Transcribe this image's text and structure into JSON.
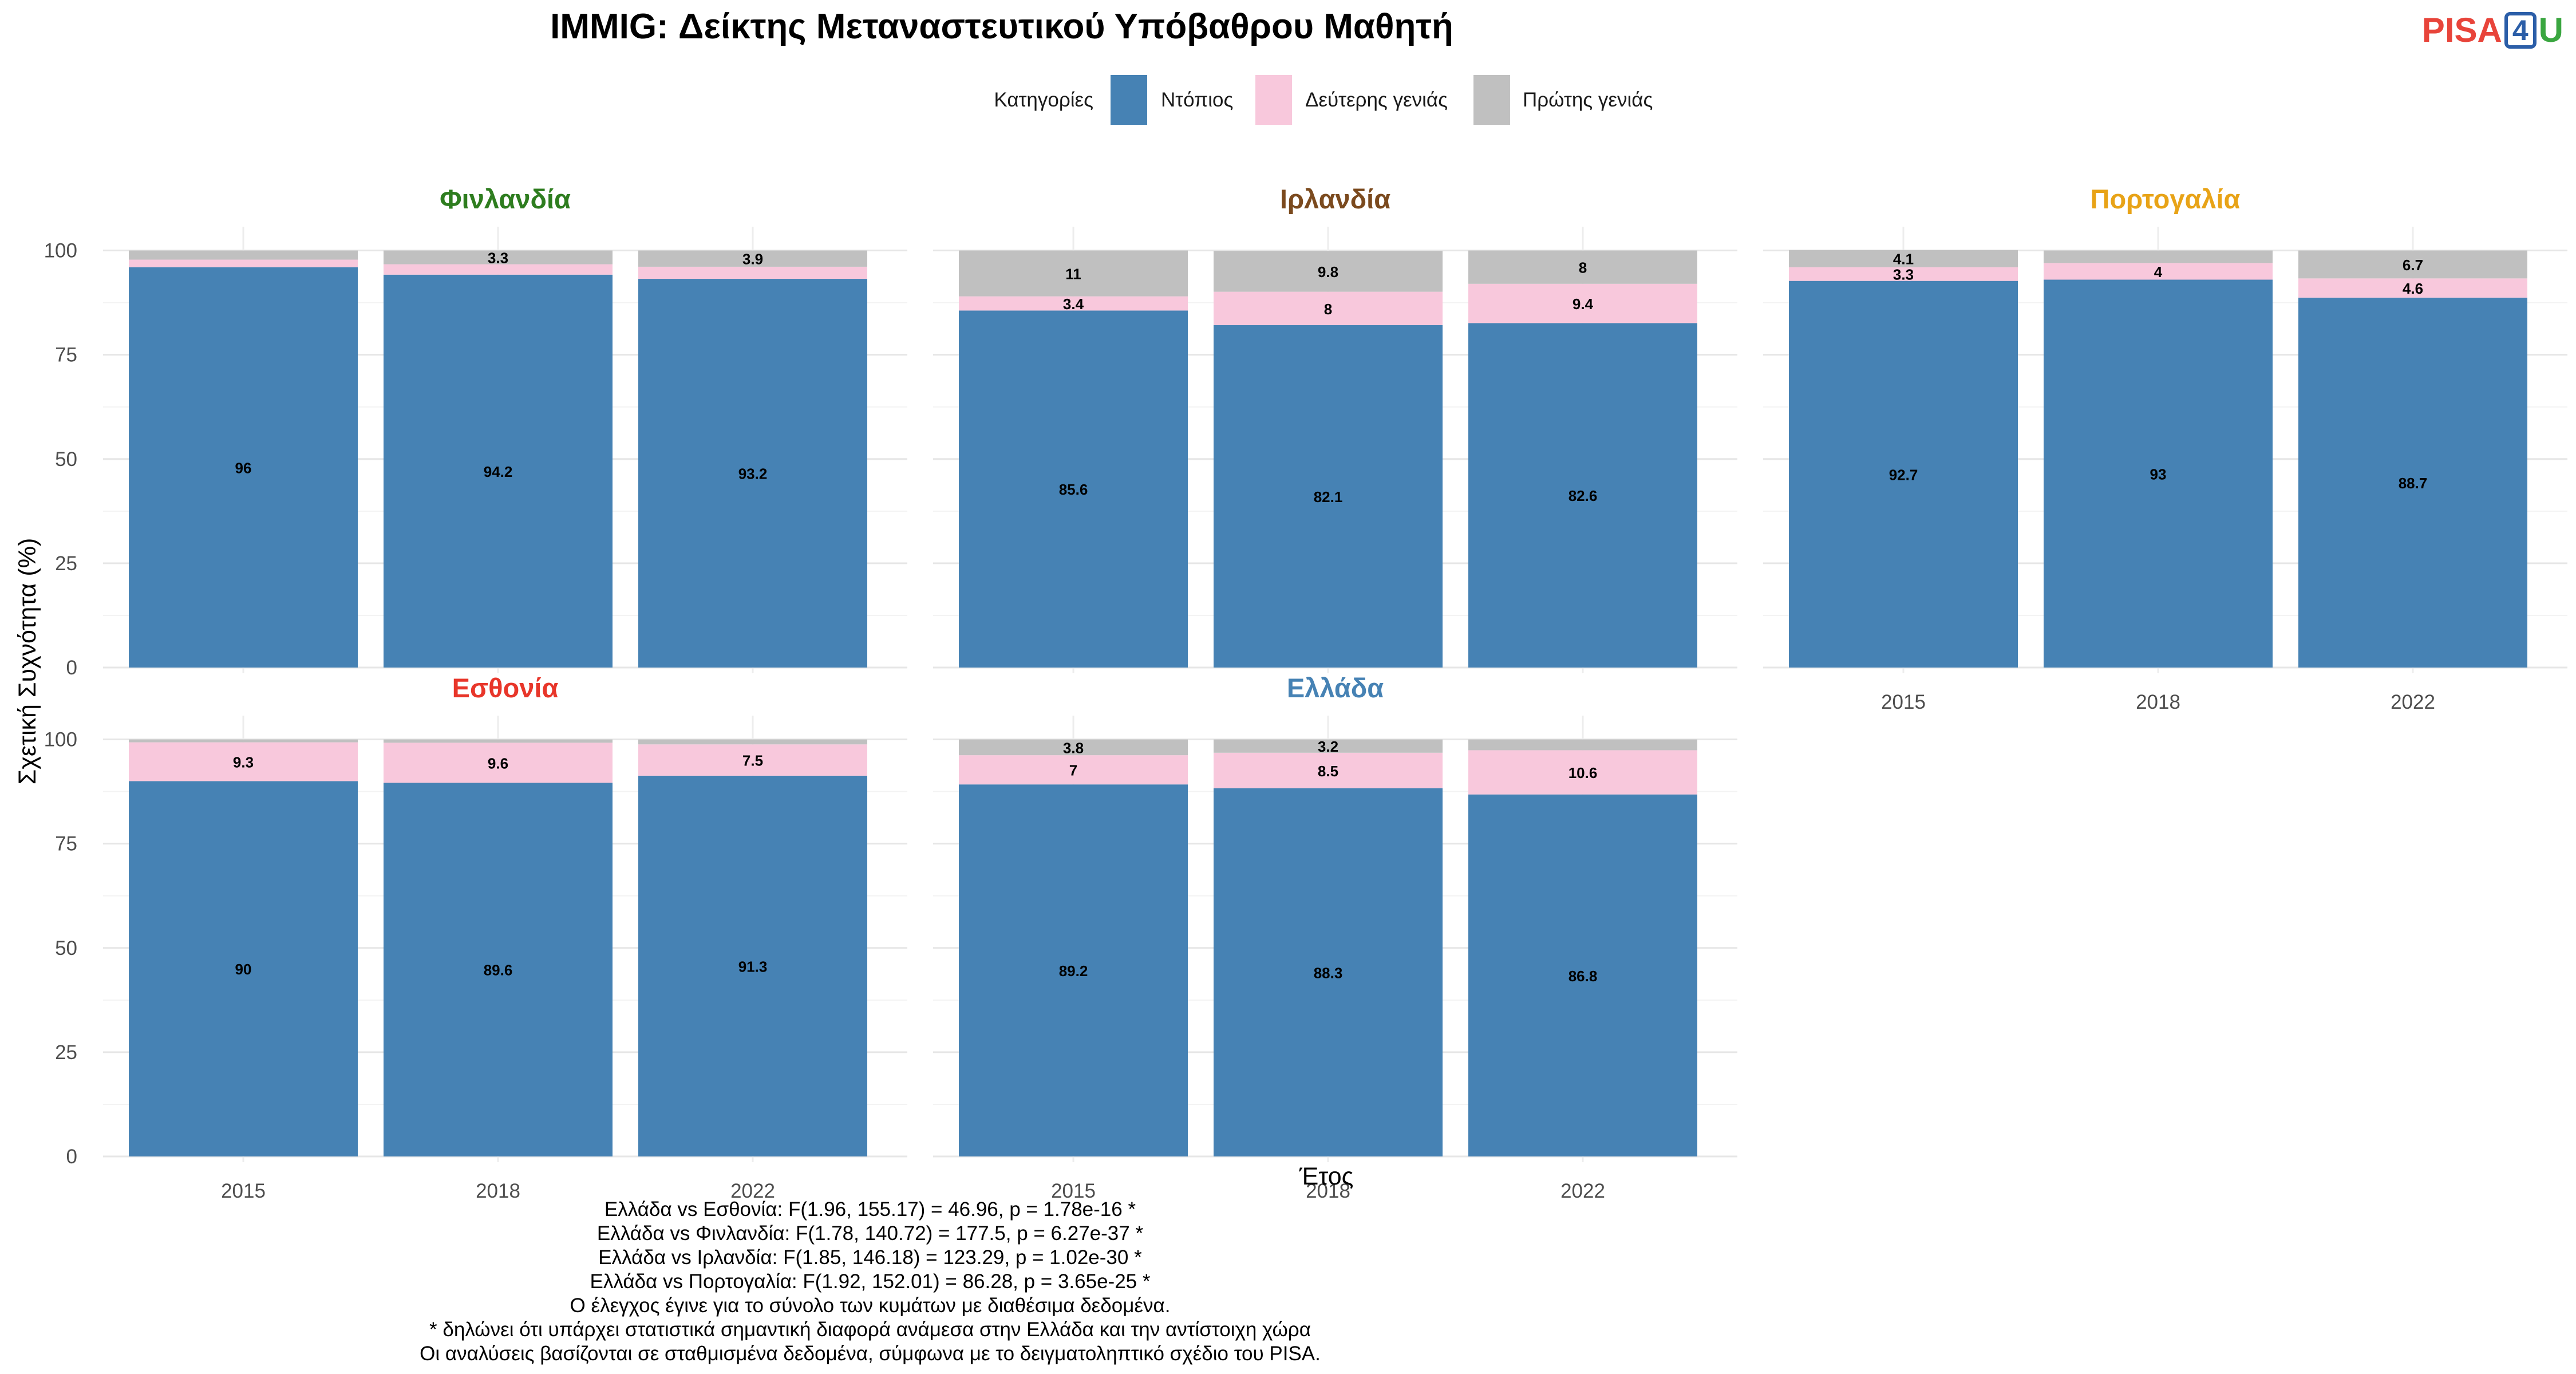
{
  "chart_data": {
    "type": "bar",
    "stacked": true,
    "title": "IMMIG: Δείκτης Μεταναστευτικού Υπόβαθρου Μαθητή",
    "xlabel": "Έτος",
    "ylabel": "Σχετική Συχνότητα (%)",
    "ylim": [
      0,
      100
    ],
    "yticks": [
      0,
      25,
      50,
      75,
      100
    ],
    "grid": true,
    "legend": {
      "title": "Κατηγορίες",
      "placement": "top-center",
      "entries": [
        {
          "name": "Ντόπιος",
          "color": "#4682B4"
        },
        {
          "name": "Δεύτερης γενιάς",
          "color": "#F8C8DC"
        },
        {
          "name": "Πρώτης γενιάς",
          "color": "#C0C0C0"
        }
      ]
    },
    "categories": [
      "2015",
      "2018",
      "2022"
    ],
    "panels": [
      {
        "name": "Φινλανδία",
        "color": "#2E7D1F",
        "series": [
          {
            "name": "Ντόπιος",
            "values": [
              96,
              94.2,
              93.2
            ],
            "labels": [
              "96",
              "94.2",
              "93.2"
            ]
          },
          {
            "name": "Δεύτερης γενιάς",
            "values": [
              1.8,
              2.5,
              2.9
            ],
            "labels": [
              "",
              "",
              ""
            ]
          },
          {
            "name": "Πρώτης γενιάς",
            "values": [
              2.2,
              3.3,
              3.9
            ],
            "labels": [
              "",
              "3.3",
              "3.9"
            ]
          }
        ]
      },
      {
        "name": "Ιρλανδία",
        "color": "#7B4A1E",
        "series": [
          {
            "name": "Ντόπιος",
            "values": [
              85.6,
              82.1,
              82.6
            ],
            "labels": [
              "85.6",
              "82.1",
              "82.6"
            ]
          },
          {
            "name": "Δεύτερης γενιάς",
            "values": [
              3.4,
              8,
              9.4
            ],
            "labels": [
              "3.4",
              "8",
              "9.4"
            ]
          },
          {
            "name": "Πρώτης γενιάς",
            "values": [
              11,
              9.8,
              8
            ],
            "labels": [
              "11",
              "9.8",
              "8"
            ]
          }
        ]
      },
      {
        "name": "Πορτογαλία",
        "color": "#E8A317",
        "series": [
          {
            "name": "Ντόπιος",
            "values": [
              92.7,
              93,
              88.7
            ],
            "labels": [
              "92.7",
              "93",
              "88.7"
            ]
          },
          {
            "name": "Δεύτερης γενιάς",
            "values": [
              3.3,
              4,
              4.6
            ],
            "labels": [
              "3.3",
              "4",
              "4.6"
            ]
          },
          {
            "name": "Πρώτης γενιάς",
            "values": [
              4.1,
              3,
              6.7
            ],
            "labels": [
              "4.1",
              "",
              "6.7"
            ]
          }
        ]
      },
      {
        "name": "Εσθονία",
        "color": "#E8362A",
        "series": [
          {
            "name": "Ντόπιος",
            "values": [
              90,
              89.6,
              91.3
            ],
            "labels": [
              "90",
              "89.6",
              "91.3"
            ]
          },
          {
            "name": "Δεύτερης γενιάς",
            "values": [
              9.3,
              9.6,
              7.5
            ],
            "labels": [
              "9.3",
              "9.6",
              "7.5"
            ]
          },
          {
            "name": "Πρώτης γενιάς",
            "values": [
              0.7,
              0.8,
              1.2
            ],
            "labels": [
              "",
              "",
              ""
            ]
          }
        ]
      },
      {
        "name": "Ελλάδα",
        "color": "#4682B4",
        "series": [
          {
            "name": "Ντόπιος",
            "values": [
              89.2,
              88.3,
              86.8
            ],
            "labels": [
              "89.2",
              "88.3",
              "86.8"
            ]
          },
          {
            "name": "Δεύτερης γενιάς",
            "values": [
              7,
              8.5,
              10.6
            ],
            "labels": [
              "7",
              "8.5",
              "10.6"
            ]
          },
          {
            "name": "Πρώτης γενιάς",
            "values": [
              3.8,
              3.2,
              2.6
            ],
            "labels": [
              "3.8",
              "3.2",
              ""
            ]
          }
        ]
      }
    ]
  },
  "logo": {
    "part1": "PISA",
    "part2": "4",
    "part3": "U"
  },
  "notes": [
    "Ελλάδα vs Εσθονία: F(1.96, 155.17) = 46.96, p = 1.78e-16 *",
    "Ελλάδα vs Φινλανδία: F(1.78, 140.72) = 177.5, p = 6.27e-37 *",
    "Ελλάδα vs Ιρλανδία: F(1.85, 146.18) = 123.29, p = 1.02e-30 *",
    "Ελλάδα vs Πορτογαλία: F(1.92, 152.01) = 86.28, p = 3.65e-25 *",
    "Ο έλεγχος έγινε για το σύνολο των κυμάτων με διαθέσιμα δεδομένα.",
    "* δηλώνει ότι υπάρχει στατιστικά σημαντική διαφορά ανάμεσα στην Ελλάδα και την αντίστοιχη χώρα",
    "Οι αναλύσεις βασίζονται σε σταθμισμένα δεδομένα, σύμφωνα με το δειγματοληπτικό σχέδιο του PISA."
  ]
}
